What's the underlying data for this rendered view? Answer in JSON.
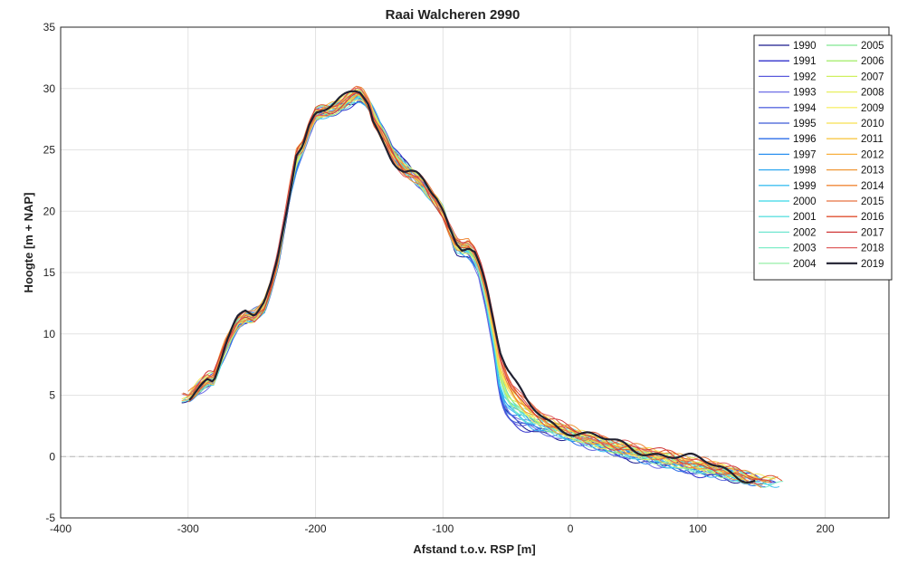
{
  "chart_data": {
    "type": "line",
    "title": "Raai Walcheren   2990",
    "xlabel": "Afstand t.o.v. RSP [m]",
    "ylabel": "Hoogte [m + NAP]",
    "xlim": [
      -400,
      250
    ],
    "ylim": [
      -5,
      35
    ],
    "xticks": [
      -400,
      -300,
      -200,
      -100,
      0,
      100,
      200
    ],
    "yticks": [
      -5,
      0,
      5,
      10,
      15,
      20,
      25,
      30,
      35
    ],
    "grid": true,
    "reference_line": 0,
    "legend_position": "top-right",
    "years": [
      "1990",
      "1991",
      "1992",
      "1993",
      "1994",
      "1995",
      "1996",
      "1997",
      "1998",
      "1999",
      "2000",
      "2001",
      "2002",
      "2003",
      "2004",
      "2005",
      "2006",
      "2007",
      "2008",
      "2009",
      "2010",
      "2011",
      "2012",
      "2013",
      "2014",
      "2015",
      "2016",
      "2017",
      "2018",
      "2019"
    ],
    "colors": [
      "#1a1a8c",
      "#3030cc",
      "#5a5adc",
      "#6e6ee6",
      "#5a6ae0",
      "#3c5ad6",
      "#2c6ee8",
      "#2a90f0",
      "#30a8f0",
      "#40c0f0",
      "#38d6e8",
      "#60e0e0",
      "#70e6d0",
      "#80eec8",
      "#a0f0b0",
      "#80e890",
      "#a8ee70",
      "#d0f060",
      "#e8f060",
      "#f8f070",
      "#f8e050",
      "#f8c848",
      "#f8b040",
      "#f09838",
      "#f08838",
      "#e87040",
      "#e05030",
      "#d03838",
      "#e06060",
      "#202030"
    ],
    "base_profile": {
      "x": [
        -300,
        -290,
        -285,
        -280,
        -275,
        -270,
        -262,
        -255,
        -248,
        -240,
        -235,
        -230,
        -225,
        -220,
        -215,
        -210,
        -205,
        -200,
        -195,
        -190,
        -185,
        -178,
        -172,
        -168,
        -165,
        -162,
        -158,
        -155,
        -150,
        -145,
        -140,
        -135,
        -130,
        -125,
        -120,
        -115,
        -110,
        -105,
        -100,
        -95,
        -90,
        -85,
        -80,
        -75,
        -70,
        -65,
        -60,
        -55,
        -50,
        -45,
        -40,
        -35,
        -30,
        -20,
        -10,
        0,
        10,
        20,
        30,
        40,
        50,
        60,
        70,
        80,
        90,
        100,
        110,
        120,
        130,
        140,
        150
      ],
      "y": [
        4.8,
        6.0,
        6.5,
        6.4,
        8.0,
        9.5,
        11.0,
        11.5,
        11.3,
        12.5,
        14.0,
        16.0,
        19.0,
        22.0,
        25.0,
        25.5,
        27.0,
        28.0,
        28.2,
        28.3,
        28.5,
        29.0,
        29.5,
        29.8,
        29.8,
        29.5,
        28.8,
        27.5,
        26.5,
        25.5,
        24.5,
        23.8,
        23.2,
        23.0,
        22.8,
        22.3,
        21.5,
        20.8,
        19.8,
        18.5,
        17.5,
        17.2,
        17.5,
        17.0,
        15.5,
        13.5,
        11.0,
        8.5,
        7.0,
        6.0,
        5.2,
        4.5,
        4.0,
        3.2,
        2.6,
        2.2,
        1.8,
        1.5,
        1.2,
        0.9,
        0.7,
        0.5,
        0.3,
        0.1,
        -0.2,
        -0.4,
        -0.6,
        -0.9,
        -1.3,
        -1.7,
        -2.1
      ]
    },
    "blue_profile": {
      "x": [
        -300,
        -280,
        -260,
        -240,
        -230,
        -220,
        -210,
        -200,
        -190,
        -175,
        -165,
        -155,
        -140,
        -120,
        -100,
        -90,
        -80,
        -72,
        -66,
        -60,
        -56,
        -52,
        -48,
        -44,
        -40,
        -30,
        -20,
        -10,
        0,
        20,
        40,
        60,
        80,
        100,
        120,
        140
      ],
      "y": [
        4.8,
        6.3,
        11.0,
        12.0,
        15.5,
        21.5,
        25.0,
        27.8,
        28.0,
        28.8,
        29.3,
        28.3,
        25.0,
        22.5,
        20.0,
        17.0,
        16.5,
        15.0,
        12.0,
        8.5,
        5.0,
        3.5,
        3.0,
        2.8,
        2.6,
        2.3,
        2.1,
        1.8,
        1.5,
        0.9,
        0.3,
        -0.3,
        -0.8,
        -1.2,
        -1.5,
        -1.9
      ]
    }
  },
  "legend": {
    "col1": [
      "1990",
      "1991",
      "1992",
      "1993",
      "1994",
      "1995",
      "1996",
      "1997",
      "1998",
      "1999",
      "2000",
      "2001",
      "2002",
      "2003",
      "2004"
    ],
    "col2": [
      "2005",
      "2006",
      "2007",
      "2008",
      "2009",
      "2010",
      "2011",
      "2012",
      "2013",
      "2014",
      "2015",
      "2016",
      "2017",
      "2018",
      "2019"
    ]
  }
}
